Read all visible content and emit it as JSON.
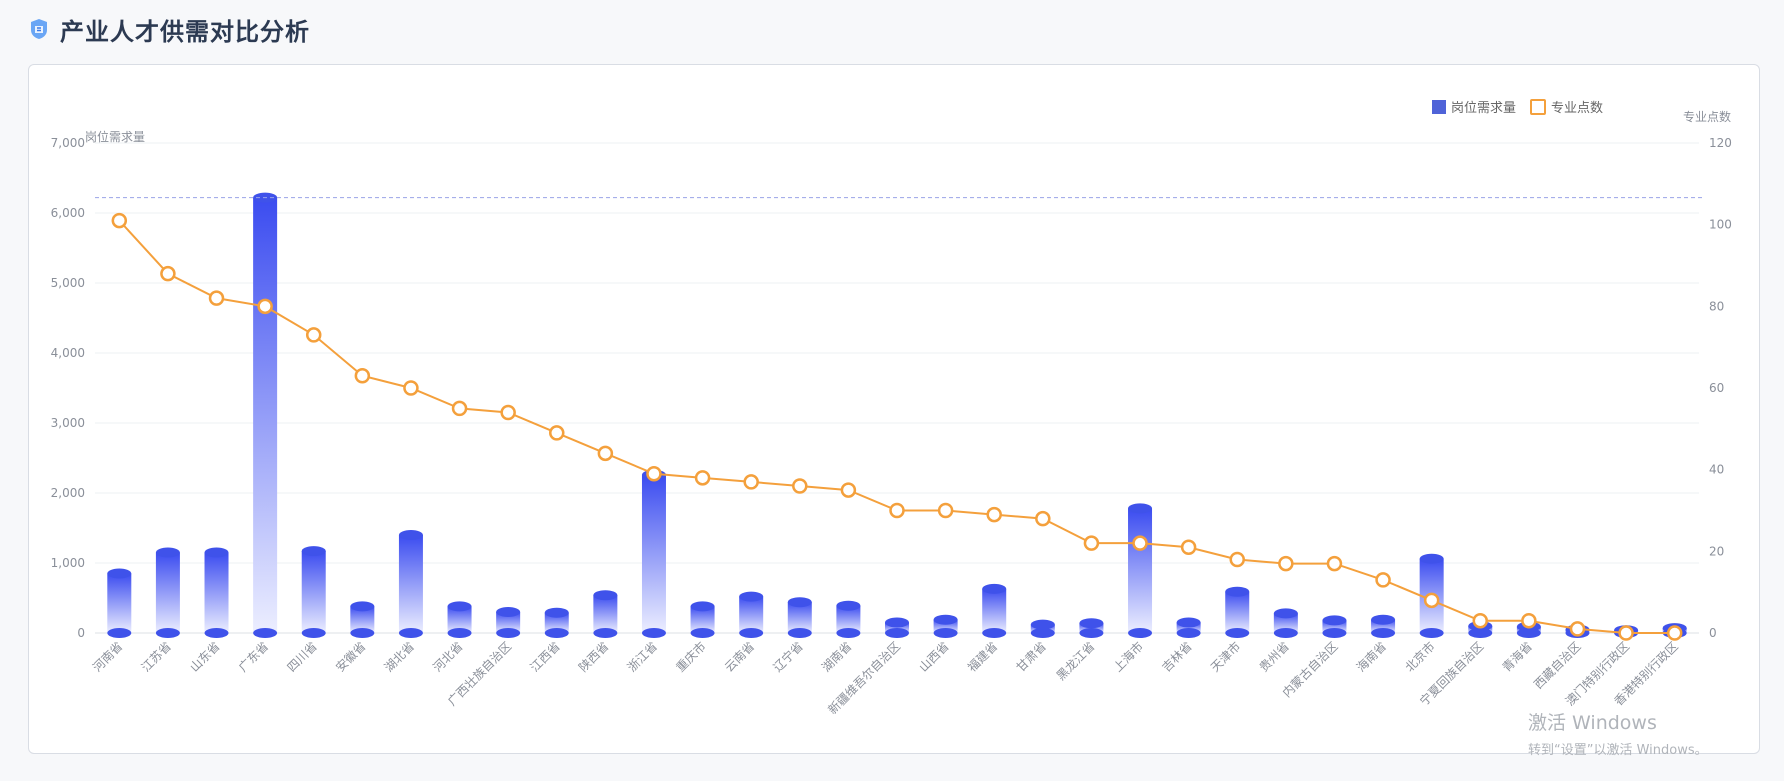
{
  "header": {
    "title": "产业人才供需对比分析",
    "logo_icon": "shield-icon"
  },
  "legend": {
    "bar_label": "岗位需求量",
    "line_label": "专业点数"
  },
  "watermark": {
    "line1": "激活 Windows",
    "line2": "转到“设置”以激活 Windows。"
  },
  "chart_data": {
    "type": "bar+line",
    "categories": [
      "河南省",
      "江苏省",
      "山东省",
      "广东省",
      "四川省",
      "安徽省",
      "湖北省",
      "河北省",
      "广西壮族自治区",
      "江西省",
      "陕西省",
      "浙江省",
      "重庆市",
      "云南省",
      "辽宁省",
      "湖南省",
      "新疆维吾尔自治区",
      "山西省",
      "福建省",
      "甘肃省",
      "黑龙江省",
      "上海市",
      "吉林省",
      "天津市",
      "贵州省",
      "内蒙古自治区",
      "海南省",
      "北京市",
      "宁夏回族自治区",
      "青海省",
      "西藏自治区",
      "澳门特别行政区",
      "香港特别行政区"
    ],
    "series": [
      {
        "name": "岗位需求量",
        "type": "bar",
        "axis": "left",
        "values": [
          850,
          1150,
          1150,
          6220,
          1170,
          380,
          1400,
          380,
          300,
          290,
          540,
          2260,
          380,
          520,
          440,
          390,
          150,
          190,
          630,
          120,
          140,
          1780,
          150,
          590,
          280,
          180,
          190,
          1060,
          100,
          90,
          50,
          40,
          70
        ]
      },
      {
        "name": "专业点数",
        "type": "line",
        "axis": "right",
        "values": [
          101,
          88,
          82,
          80,
          73,
          63,
          60,
          55,
          54,
          49,
          44,
          39,
          38,
          37,
          36,
          35,
          30,
          30,
          29,
          28,
          22,
          22,
          21,
          18,
          17,
          17,
          13,
          8,
          3,
          3,
          1,
          0,
          0
        ]
      }
    ],
    "y_left": {
      "label": "岗位需求量",
      "min": 0,
      "max": 7000,
      "ticks": [
        0,
        1000,
        2000,
        3000,
        4000,
        5000,
        6000,
        7000
      ],
      "tick_labels": [
        "0",
        "1,000",
        "2,000",
        "3,000",
        "4,000",
        "5,000",
        "6,000",
        "7,000"
      ]
    },
    "y_right": {
      "label": "专业点数",
      "min": 0,
      "max": 120,
      "ticks": [
        0,
        20,
        40,
        60,
        80,
        100,
        120
      ],
      "tick_labels": [
        "0",
        "20",
        "40",
        "60",
        "80",
        "100",
        "120"
      ]
    },
    "markline": {
      "value": 6220,
      "axis": "left",
      "style": "dashed"
    },
    "grid": true,
    "legend_position": "top-right",
    "colors": {
      "bar_top": "#3b4cf0",
      "bar_bottom": "#e9ecff",
      "line": "#f4a03c",
      "markline": "#9aa3e8",
      "grid": "#eef0f3"
    }
  }
}
